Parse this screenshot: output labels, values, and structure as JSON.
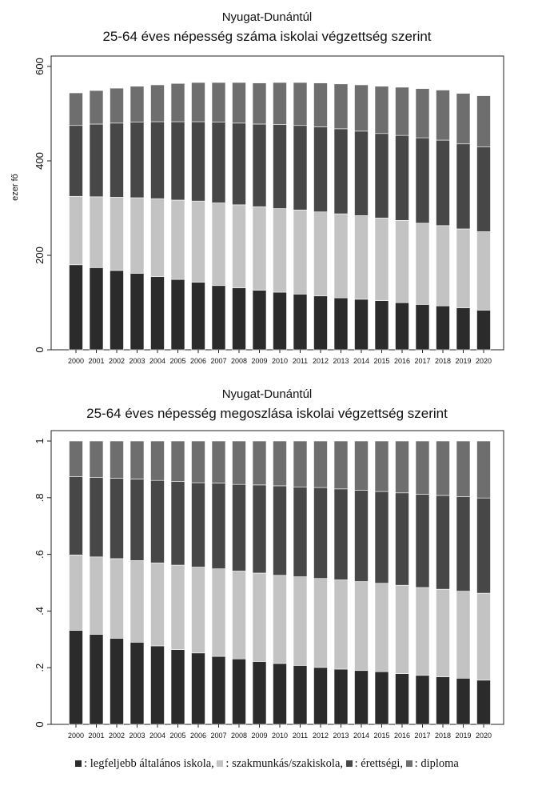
{
  "legend": {
    "items": [
      {
        "swatch": "#2b2b2b",
        "text": ": legfeljebb általános iskola,"
      },
      {
        "swatch": "#c3c3c3",
        "text": ": szakmunkás/szakiskola,"
      },
      {
        "swatch": "#474747",
        "text": ": érettségi,"
      },
      {
        "swatch": "#6e6e6e",
        "text": ": diploma"
      }
    ]
  },
  "series_colors": [
    "#2b2b2b",
    "#c3c3c3",
    "#474747",
    "#6e6e6e"
  ],
  "chart_data": [
    {
      "type": "bar",
      "stacked": true,
      "title": "Nyugat-Dunántúl",
      "subtitle": "25-64 éves népesség száma iskolai végzettség szerint",
      "xlabel": "",
      "ylabel": "ezer fő",
      "ylim": [
        0,
        600
      ],
      "yticks": [
        0,
        200,
        400,
        600
      ],
      "ytick_labels": [
        "0",
        "200",
        "400",
        "600"
      ],
      "grid": false,
      "categories": [
        "2000",
        "2001",
        "2002",
        "2003",
        "2004",
        "2005",
        "2006",
        "2007",
        "2008",
        "2009",
        "2010",
        "2011",
        "2012",
        "2013",
        "2014",
        "2015",
        "2016",
        "2017",
        "2018",
        "2019",
        "2020"
      ],
      "series": [
        {
          "values": [
            180,
            174,
            168,
            162,
            155,
            149,
            143,
            136,
            131,
            126,
            122,
            118,
            114,
            110,
            107,
            104,
            100,
            96,
            93,
            89,
            84
          ]
        },
        {
          "values": [
            145,
            150,
            155,
            160,
            165,
            168,
            172,
            175,
            176,
            177,
            177,
            178,
            178,
            178,
            177,
            175,
            174,
            172,
            170,
            167,
            166
          ]
        },
        {
          "values": [
            150,
            154,
            157,
            160,
            163,
            166,
            168,
            171,
            173,
            175,
            178,
            179,
            180,
            180,
            179,
            179,
            180,
            181,
            181,
            180,
            180
          ]
        },
        {
          "values": [
            69,
            71,
            74,
            76,
            78,
            81,
            83,
            84,
            86,
            87,
            89,
            91,
            93,
            95,
            98,
            100,
            102,
            104,
            106,
            107,
            108
          ]
        }
      ]
    },
    {
      "type": "bar",
      "stacked": true,
      "title": "Nyugat-Dunántúl",
      "subtitle": "25-64 éves népesség megoszlása iskolai végzettség szerint",
      "xlabel": "",
      "ylabel": "",
      "ylim": [
        0,
        1
      ],
      "yticks": [
        0,
        0.2,
        0.4,
        0.6,
        0.8,
        1
      ],
      "ytick_labels": [
        "0",
        ".2",
        ".4",
        ".6",
        ".8",
        "1"
      ],
      "grid": false,
      "categories": [
        "2000",
        "2001",
        "2002",
        "2003",
        "2004",
        "2005",
        "2006",
        "2007",
        "2008",
        "2009",
        "2010",
        "2011",
        "2012",
        "2013",
        "2014",
        "2015",
        "2016",
        "2017",
        "2018",
        "2019",
        "2020"
      ],
      "series": [
        {
          "values": [
            0.332,
            0.318,
            0.304,
            0.29,
            0.277,
            0.264,
            0.252,
            0.24,
            0.231,
            0.222,
            0.215,
            0.208,
            0.201,
            0.195,
            0.19,
            0.186,
            0.179,
            0.173,
            0.168,
            0.163,
            0.156
          ]
        },
        {
          "values": [
            0.266,
            0.273,
            0.281,
            0.288,
            0.293,
            0.298,
            0.303,
            0.309,
            0.31,
            0.312,
            0.311,
            0.313,
            0.314,
            0.315,
            0.314,
            0.312,
            0.312,
            0.31,
            0.309,
            0.307,
            0.307
          ]
        },
        {
          "values": [
            0.276,
            0.28,
            0.284,
            0.288,
            0.291,
            0.295,
            0.298,
            0.303,
            0.306,
            0.311,
            0.316,
            0.316,
            0.321,
            0.321,
            0.322,
            0.324,
            0.326,
            0.329,
            0.331,
            0.334,
            0.336
          ]
        },
        {
          "values": [
            0.126,
            0.129,
            0.131,
            0.134,
            0.139,
            0.143,
            0.147,
            0.148,
            0.153,
            0.155,
            0.158,
            0.163,
            0.164,
            0.169,
            0.174,
            0.178,
            0.183,
            0.188,
            0.192,
            0.196,
            0.201
          ]
        }
      ]
    }
  ]
}
